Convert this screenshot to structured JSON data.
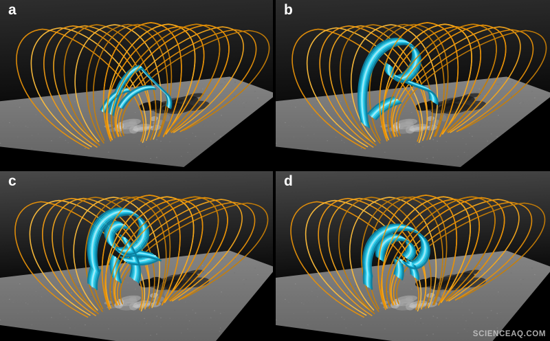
{
  "figure": {
    "panels": [
      {
        "label": "a"
      },
      {
        "label": "b"
      },
      {
        "label": "c"
      },
      {
        "label": "d"
      }
    ],
    "watermark": "SCIENCEAQ.COM",
    "colors": {
      "background": "#000000",
      "sky_top_row": "#2e2e2e",
      "sky_bottom_row": "#4a4a4a",
      "sky_horizon": "#0b0b0b",
      "magnetogram_plane_far": "#848484",
      "magnetogram_plane_near": "#626262",
      "field_lines_orange": "#f39c12",
      "flux_rope_cyan": "#2fd2f2",
      "panel_label": "#ffffff",
      "watermark": "#c9c9c9"
    }
  }
}
